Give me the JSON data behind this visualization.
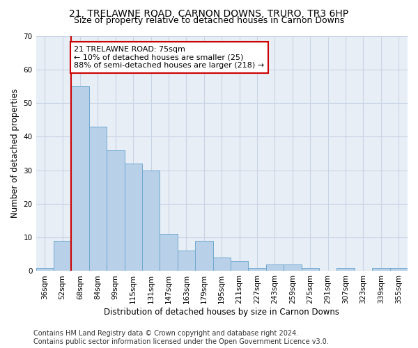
{
  "title": "21, TRELAWNE ROAD, CARNON DOWNS, TRURO, TR3 6HP",
  "subtitle": "Size of property relative to detached houses in Carnon Downs",
  "xlabel": "Distribution of detached houses by size in Carnon Downs",
  "ylabel": "Number of detached properties",
  "categories": [
    "36sqm",
    "52sqm",
    "68sqm",
    "84sqm",
    "99sqm",
    "115sqm",
    "131sqm",
    "147sqm",
    "163sqm",
    "179sqm",
    "195sqm",
    "211sqm",
    "227sqm",
    "243sqm",
    "259sqm",
    "275sqm",
    "291sqm",
    "307sqm",
    "323sqm",
    "339sqm",
    "355sqm"
  ],
  "values": [
    1,
    9,
    55,
    43,
    36,
    32,
    30,
    11,
    6,
    9,
    4,
    3,
    1,
    2,
    2,
    1,
    0,
    1,
    0,
    1,
    1
  ],
  "bar_color": "#b8d0e8",
  "bar_edge_color": "#6fa8d0",
  "vline_color": "#cc0000",
  "vline_pos": 1.5,
  "annotation_text": "21 TRELAWNE ROAD: 75sqm\n← 10% of detached houses are smaller (25)\n88% of semi-detached houses are larger (218) →",
  "annotation_box_facecolor": "#ffffff",
  "annotation_box_edgecolor": "#cc0000",
  "ylim": [
    0,
    70
  ],
  "yticks": [
    0,
    10,
    20,
    30,
    40,
    50,
    60,
    70
  ],
  "grid_color": "#c8d4e4",
  "background_color": "#e8eef6",
  "footer_line1": "Contains HM Land Registry data © Crown copyright and database right 2024.",
  "footer_line2": "Contains public sector information licensed under the Open Government Licence v3.0.",
  "title_fontsize": 10,
  "subtitle_fontsize": 9,
  "axis_label_fontsize": 8.5,
  "tick_fontsize": 7.5,
  "annotation_fontsize": 8,
  "footer_fontsize": 7
}
